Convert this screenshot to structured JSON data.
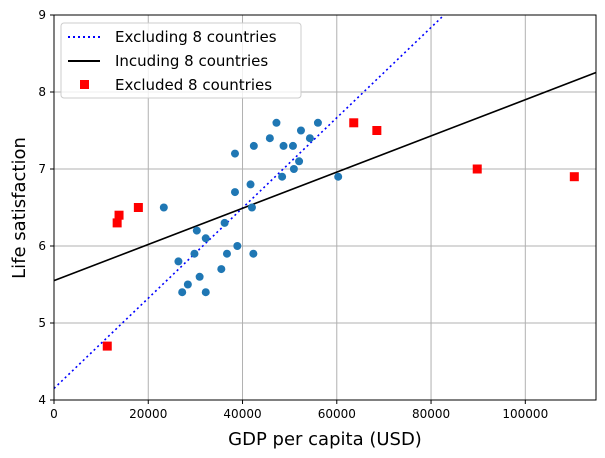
{
  "chart_data": {
    "type": "scatter",
    "xlabel": "GDP per capita (USD)",
    "ylabel": "Life satisfaction",
    "xlim": [
      0,
      115000
    ],
    "ylim": [
      4,
      9
    ],
    "xticks": [
      0,
      20000,
      40000,
      60000,
      80000,
      100000
    ],
    "yticks": [
      4,
      5,
      6,
      7,
      8,
      9
    ],
    "grid": true,
    "legend_position": "top-left",
    "series": [
      {
        "name": "Excluding 8 countries",
        "kind": "line",
        "style": "dotted",
        "color": "#0000ff",
        "intercept": 4.15,
        "slope": 5.86e-05
      },
      {
        "name": "Incuding 8 countries",
        "kind": "line",
        "style": "solid",
        "color": "#000000",
        "intercept": 5.55,
        "slope": 2.35e-05
      },
      {
        "name": "Excluded 8 countries",
        "kind": "scatter",
        "marker": "square",
        "color": "#ff0000",
        "points": [
          [
            11300,
            4.7
          ],
          [
            13400,
            6.3
          ],
          [
            13800,
            6.4
          ],
          [
            17900,
            6.5
          ],
          [
            63600,
            7.6
          ],
          [
            68500,
            7.5
          ],
          [
            89800,
            7.0
          ],
          [
            110400,
            6.9
          ]
        ]
      },
      {
        "kind": "scatter",
        "marker": "circle",
        "color": "#1f77b4",
        "points": [
          [
            47200,
            7.6
          ],
          [
            56000,
            7.6
          ],
          [
            52400,
            7.5
          ],
          [
            45800,
            7.4
          ],
          [
            54300,
            7.4
          ],
          [
            38400,
            7.2
          ],
          [
            42400,
            7.3
          ],
          [
            48700,
            7.3
          ],
          [
            50700,
            7.3
          ],
          [
            52000,
            7.1
          ],
          [
            50900,
            7.0
          ],
          [
            48400,
            6.9
          ],
          [
            60300,
            6.9
          ],
          [
            41700,
            6.8
          ],
          [
            38400,
            6.7
          ],
          [
            42000,
            6.5
          ],
          [
            23300,
            6.5
          ],
          [
            36200,
            6.3
          ],
          [
            30300,
            6.2
          ],
          [
            32200,
            6.1
          ],
          [
            38900,
            6.0
          ],
          [
            29800,
            5.9
          ],
          [
            36700,
            5.9
          ],
          [
            42300,
            5.9
          ],
          [
            26400,
            5.8
          ],
          [
            35500,
            5.7
          ],
          [
            30900,
            5.6
          ],
          [
            28400,
            5.5
          ],
          [
            27200,
            5.4
          ],
          [
            32200,
            5.4
          ]
        ]
      }
    ]
  }
}
